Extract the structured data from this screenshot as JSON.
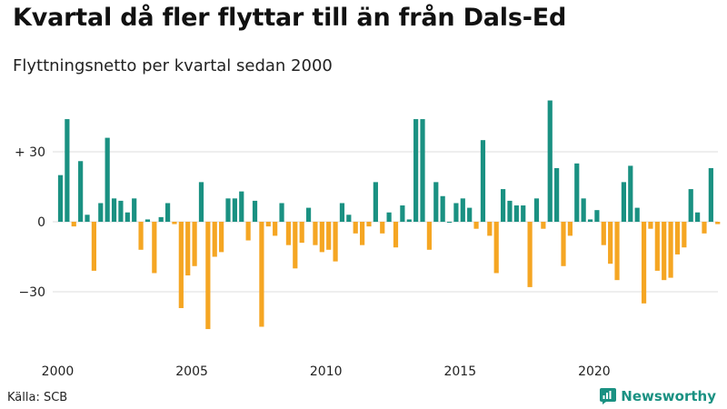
{
  "header": {
    "title": "Kvartal då fler flyttar till än från Dals-Ed",
    "subtitle": "Flyttningsnetto per kvartal sedan 2000"
  },
  "footer": {
    "source": "Källa: SCB",
    "brand": "Newsworthy"
  },
  "colors": {
    "positive": "#1a9182",
    "negative": "#f5a623",
    "grid": "#dddddd",
    "brand": "#1a9182"
  },
  "chart_data": {
    "type": "bar",
    "x_start_year": 2000,
    "periods_per_year": 4,
    "x_tick_labels": [
      "2000",
      "2005",
      "2010",
      "2015",
      "2020"
    ],
    "y_tick_labels": [
      "+ 30",
      "0",
      "−30"
    ],
    "y_tick_values": [
      30,
      0,
      -30
    ],
    "ylim": [
      -50,
      50
    ],
    "values": [
      20,
      44,
      -2,
      26,
      3,
      -21,
      8,
      36,
      10,
      9,
      4,
      10,
      -12,
      1,
      -22,
      2,
      8,
      -1,
      -37,
      -23,
      -19,
      17,
      -46,
      -15,
      -13,
      10,
      10,
      13,
      -8,
      9,
      -45,
      -2,
      -6,
      8,
      -10,
      -20,
      -9,
      6,
      -10,
      -13,
      -12,
      -17,
      8,
      3,
      -5,
      -10,
      -2,
      17,
      -5,
      4,
      -11,
      7,
      1,
      44,
      44,
      -12,
      17,
      11,
      0,
      8,
      10,
      6,
      -3,
      35,
      -6,
      -22,
      14,
      9,
      7,
      7,
      -28,
      10,
      -3,
      52,
      23,
      -19,
      -6,
      25,
      10,
      1,
      5,
      -10,
      -18,
      -25,
      17,
      24,
      6,
      -35,
      -3,
      -21,
      -25,
      -24,
      -14,
      -11,
      14,
      4,
      -5,
      23,
      -1
    ]
  }
}
